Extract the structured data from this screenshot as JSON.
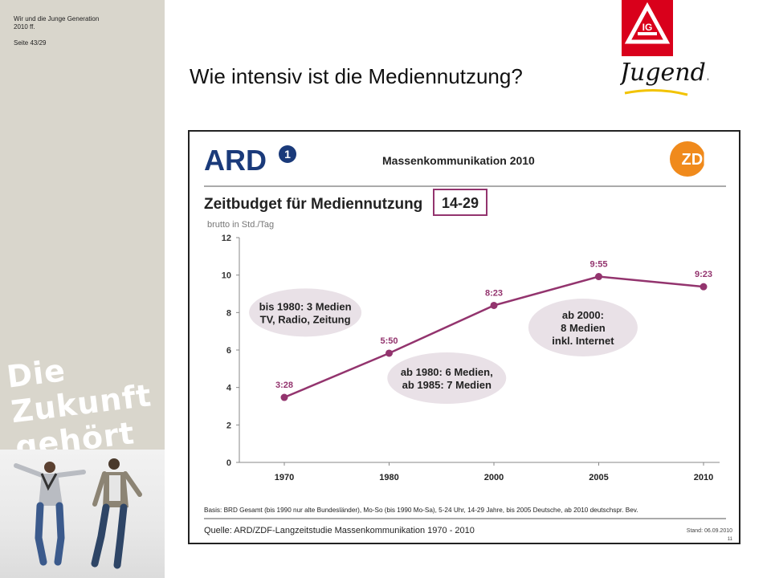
{
  "sidebar": {
    "meta_line1": "Wir und die Junge Generation",
    "meta_line2": "2010 ff.",
    "page_label": "Seite 43/29",
    "slogan_line1": "Die Zukunft",
    "slogan_line2": "gehört uns."
  },
  "header": {
    "title": "Wie intensiv ist die Mediennutzung?",
    "logo_text": "Jugend!"
  },
  "chart_header": {
    "ard_logo": "ARD",
    "ard_mark": "1",
    "study_title": "Massenkommunikation 2010",
    "zdf_logo": "ZDF",
    "chart_title": "Zeitbudget für Mediennutzung",
    "age_badge": "14-29"
  },
  "chart_data": {
    "type": "line",
    "ylabel": "brutto in Std./Tag",
    "ylim": [
      0,
      12
    ],
    "yticks": [
      0,
      2,
      4,
      6,
      8,
      10,
      12
    ],
    "categories": [
      "1970",
      "1980",
      "2000",
      "2005",
      "2010"
    ],
    "series": [
      {
        "values": [
          3.47,
          5.83,
          8.38,
          9.92,
          9.38
        ],
        "labels": [
          "3:28",
          "5:50",
          "8:23",
          "9:55",
          "9:23"
        ]
      }
    ],
    "annotations": [
      {
        "lines": [
          "bis 1980: 3 Medien",
          "TV, Radio, Zeitung"
        ]
      },
      {
        "lines": [
          "ab 1980: 6 Medien,",
          "ab 1985: 7 Medien"
        ]
      },
      {
        "lines": [
          "ab 2000:",
          "8 Medien",
          "inkl. Internet"
        ]
      }
    ],
    "grid": false
  },
  "chart_footer": {
    "basis": "Basis: BRD Gesamt (bis 1990 nur alte Bundesländer), Mo-So (bis 1990 Mo-Sa), 5-24 Uhr, 14-29 Jahre, bis 2005 Deutsche, ab 2010 deutschspr. Bev.",
    "source": "Quelle: ARD/ZDF-Langzeitstudie Massenkommunikation 1970 - 2010",
    "stand": "Stand: 06.09.2010",
    "page_no": "11"
  },
  "colors": {
    "line": "#93346e",
    "bubble": "#e9e1e7",
    "badge_border": "#93346e",
    "zdf": "#f08a1c",
    "ard": "#1a3a7a",
    "igm": "#d9001b"
  }
}
